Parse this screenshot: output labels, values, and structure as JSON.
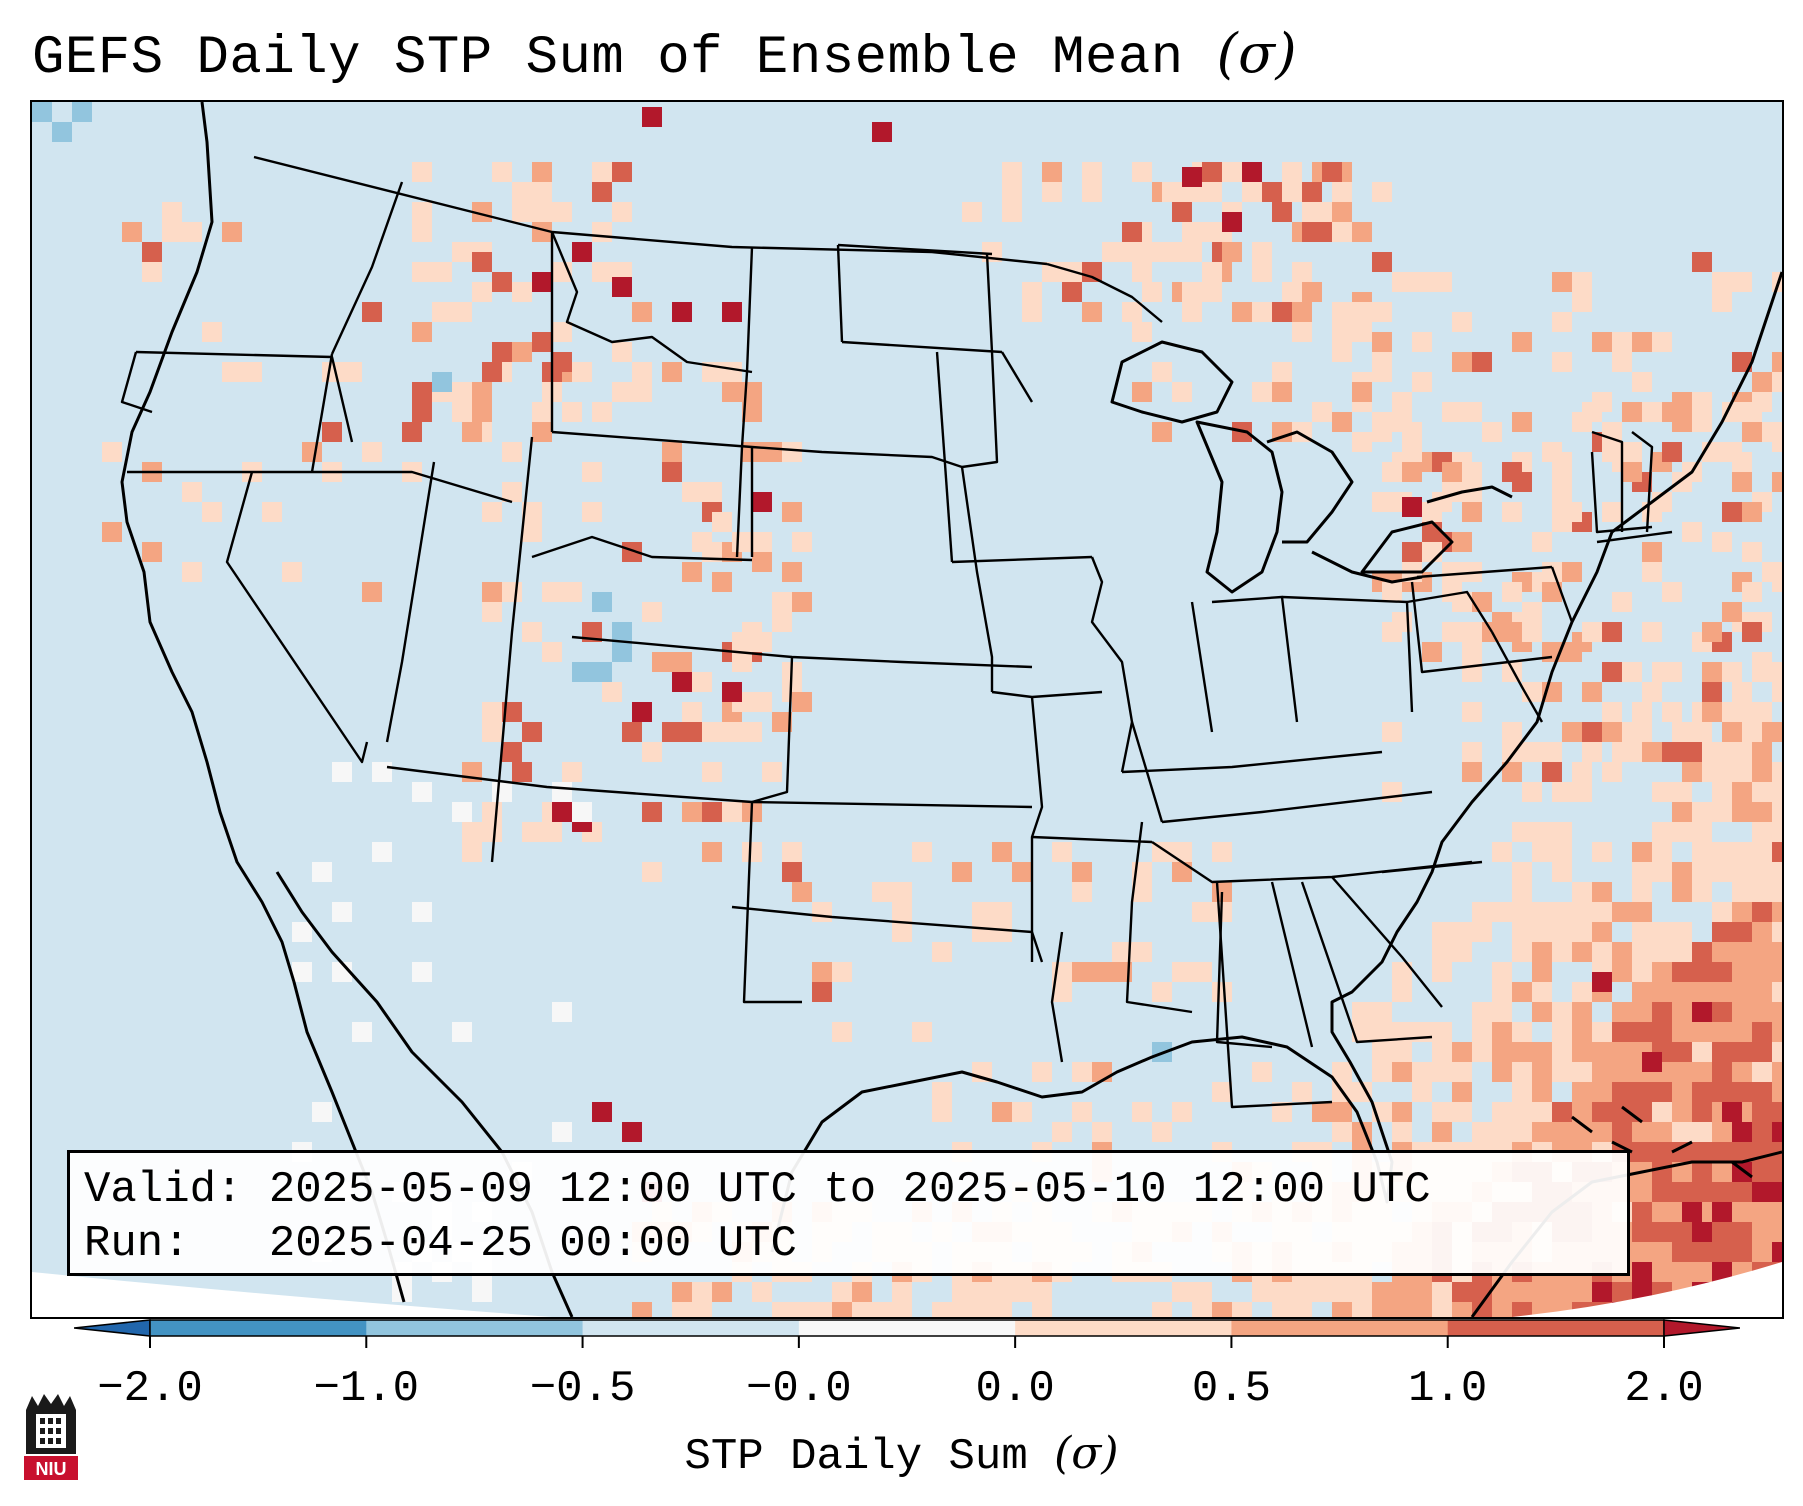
{
  "title": "GEFS Daily STP Sum of Ensemble Mean",
  "title_unit": "(σ)",
  "info": {
    "valid_label": "Valid:",
    "valid_value": "2025-05-09 12:00 UTC to 2025-05-10 12:00 UTC",
    "run_label": "Run:",
    "run_value": "2025-04-25 00:00 UTC"
  },
  "colorbar": {
    "label": "STP Daily Sum",
    "label_unit": "(σ)",
    "ticks": [
      "−2.0",
      "−1.0",
      "−0.5",
      "−0.0",
      "0.0",
      "0.5",
      "1.0",
      "2.0"
    ],
    "colors": [
      "#4393c3",
      "#92c5de",
      "#d1e5f0",
      "#f7f7f7",
      "#fddbc7",
      "#f4a582",
      "#d6604d"
    ],
    "under_color": "#2166ac",
    "over_color": "#b2182b"
  },
  "logo": {
    "text": "NIU",
    "color": "#c8102e"
  }
}
